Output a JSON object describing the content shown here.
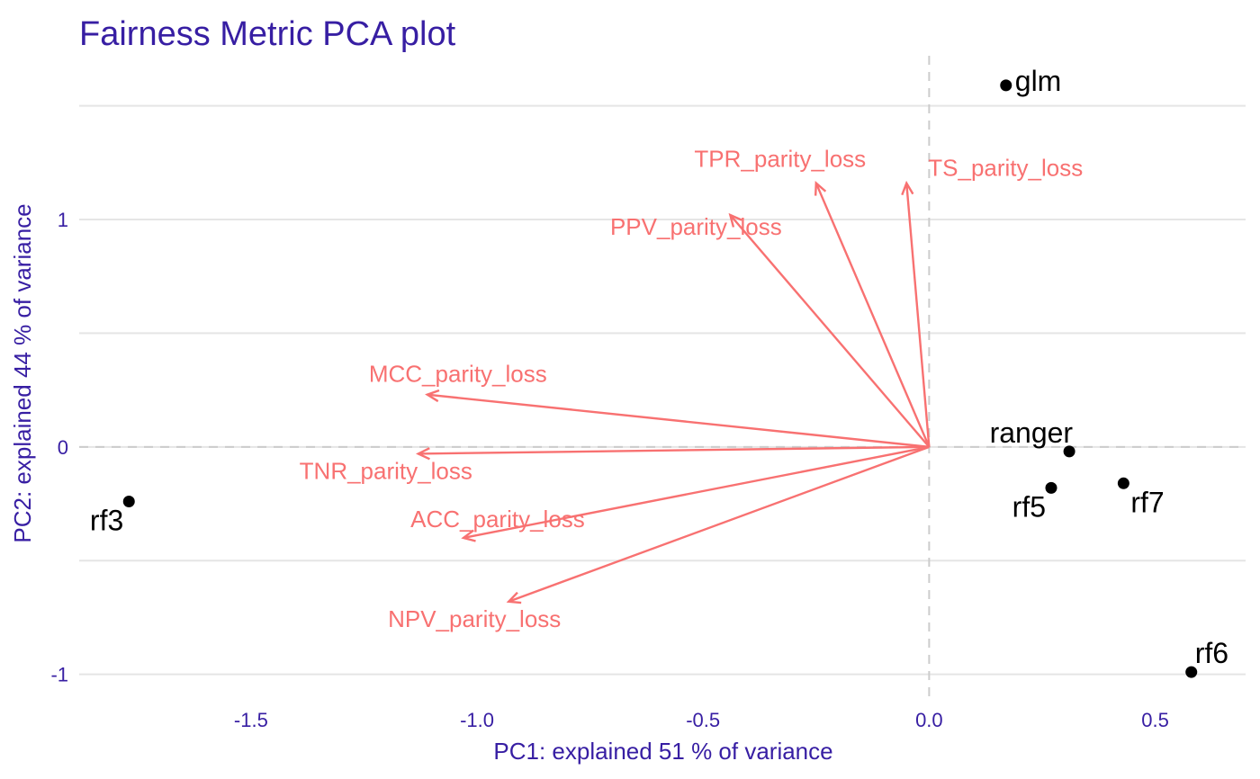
{
  "chart_data": {
    "type": "scatter",
    "subtype": "pca-biplot",
    "title": "Fairness Metric PCA plot",
    "xlabel": "PC1: explained 51 % of variance",
    "ylabel": "PC2: explained 44 % of variance",
    "xlim": [
      -1.88,
      0.7
    ],
    "ylim": [
      -1.12,
      1.72
    ],
    "xticks": [
      -1.5,
      -1.0,
      -0.5,
      0.0,
      0.5
    ],
    "xtick_labels": [
      "-1.5",
      "-1.0",
      "-0.5",
      "0.0",
      "0.5"
    ],
    "yticks": [
      -1,
      0,
      1
    ],
    "ytick_labels": [
      "-1",
      "0",
      "1"
    ],
    "grid": true,
    "grid_y_major": [
      -1,
      -0.5,
      0,
      0.5,
      1,
      1.5
    ],
    "reference_lines": {
      "x": 0,
      "y": 0
    },
    "colors": {
      "title": "#371ea3",
      "axis": "#371ea3",
      "arrow": "#f87171",
      "point": "#000000",
      "grid": "#e5e5e5",
      "reference": "#cccccc"
    },
    "points": [
      {
        "label": "glm",
        "x": 0.17,
        "y": 1.59,
        "label_pos": "right"
      },
      {
        "label": "ranger",
        "x": 0.31,
        "y": -0.02,
        "label_pos": "top-left"
      },
      {
        "label": "rf5",
        "x": 0.27,
        "y": -0.18,
        "label_pos": "bottom-left"
      },
      {
        "label": "rf7",
        "x": 0.43,
        "y": -0.16,
        "label_pos": "bottom-right"
      },
      {
        "label": "rf6",
        "x": 0.58,
        "y": -0.99,
        "label_pos": "top-right"
      },
      {
        "label": "rf3",
        "x": -1.77,
        "y": -0.24,
        "label_pos": "bottom-left"
      }
    ],
    "loadings": [
      {
        "label": "TPR_parity_loss",
        "x": -0.25,
        "y": 1.16
      },
      {
        "label": "TS_parity_loss",
        "x": -0.05,
        "y": 1.16
      },
      {
        "label": "PPV_parity_loss",
        "x": -0.44,
        "y": 1.02
      },
      {
        "label": "MCC_parity_loss",
        "x": -1.11,
        "y": 0.23
      },
      {
        "label": "TNR_parity_loss",
        "x": -1.13,
        "y": -0.03
      },
      {
        "label": "ACC_parity_loss",
        "x": -1.03,
        "y": -0.4
      },
      {
        "label": "NPV_parity_loss",
        "x": -0.93,
        "y": -0.68
      }
    ]
  }
}
